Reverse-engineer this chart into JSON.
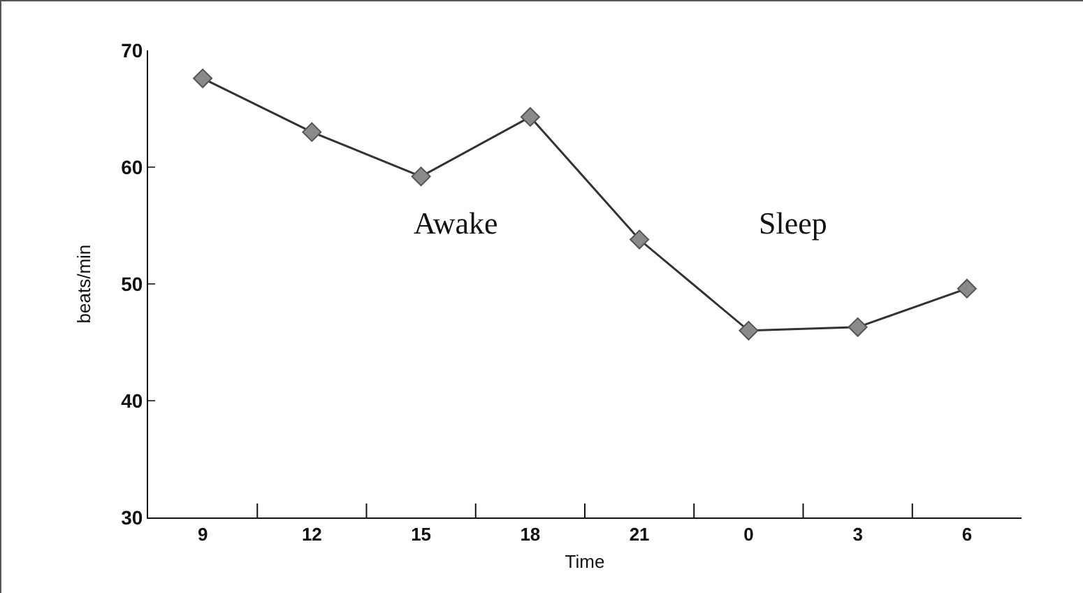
{
  "chart_data": {
    "type": "line",
    "xlabel": "Time",
    "ylabel": "beats/min",
    "categories": [
      "9",
      "12",
      "15",
      "18",
      "21",
      "0",
      "3",
      "6"
    ],
    "series": [
      {
        "color": "#333333",
        "values": [
          67.6,
          63.0,
          59.2,
          64.3,
          53.8,
          46.0,
          46.3,
          49.6
        ]
      }
    ],
    "marker": "diamond",
    "ylim": [
      30,
      70
    ],
    "yticks": [
      30,
      40,
      50,
      60,
      70
    ],
    "annotations": [
      "Awake",
      "Sleep"
    ]
  }
}
